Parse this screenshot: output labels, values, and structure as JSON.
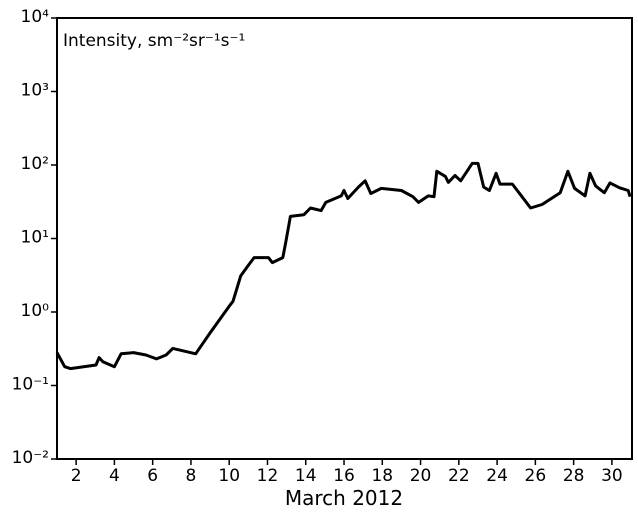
{
  "chart_data": {
    "type": "line",
    "title": "Intensity, sm⁻²sr⁻¹s⁻¹",
    "xlabel": "March 2012",
    "log_y": true,
    "color": "#000000",
    "xlim": [
      1,
      31.05
    ],
    "xticks": [
      2,
      4,
      6,
      8,
      10,
      12,
      14,
      16,
      18,
      20,
      22,
      24,
      26,
      28,
      30
    ],
    "ylim": [
      0.01,
      10000
    ],
    "yticks": [
      {
        "value": 0.01,
        "label": "10⁻²"
      },
      {
        "value": 0.1,
        "label": "10⁻¹"
      },
      {
        "value": 1,
        "label": "10⁰"
      },
      {
        "value": 10,
        "label": "10¹"
      },
      {
        "value": 100,
        "label": "10²"
      },
      {
        "value": 1000,
        "label": "10³"
      },
      {
        "value": 10000,
        "label": "10⁴"
      }
    ],
    "x": [
      1.0,
      1.4,
      1.7,
      3.04,
      3.2,
      3.4,
      4.0,
      4.35,
      5.0,
      5.65,
      6.2,
      6.7,
      7.05,
      8.25,
      9.0,
      10.0,
      10.2,
      10.6,
      11.0,
      11.3,
      12.05,
      12.25,
      12.8,
      12.95,
      13.2,
      13.9,
      14.25,
      14.8,
      15.05,
      15.85,
      16.0,
      16.2,
      16.75,
      17.1,
      17.4,
      17.95,
      19.0,
      19.6,
      19.9,
      20.4,
      20.7,
      20.85,
      21.3,
      21.45,
      21.8,
      22.1,
      22.7,
      23.0,
      23.3,
      23.6,
      23.95,
      24.15,
      24.8,
      25.2,
      25.75,
      26.35,
      27.3,
      27.7,
      28.05,
      28.6,
      28.85,
      29.15,
      29.6,
      29.9,
      30.4,
      30.85,
      30.95
    ],
    "values": [
      0.28,
      0.18,
      0.17,
      0.19,
      0.24,
      0.21,
      0.18,
      0.27,
      0.28,
      0.26,
      0.23,
      0.26,
      0.32,
      0.27,
      0.52,
      1.2,
      1.4,
      3.1,
      4.3,
      5.5,
      5.5,
      4.7,
      5.5,
      8.8,
      20,
      21,
      26,
      24,
      31,
      38,
      45,
      35,
      50,
      61,
      41,
      48,
      45,
      37,
      31,
      38,
      37,
      82,
      70,
      58,
      72,
      61,
      105,
      105,
      50,
      45,
      77,
      55,
      55,
      40,
      26,
      29,
      42,
      82,
      48,
      38,
      77,
      52,
      42,
      57,
      49,
      45,
      37
    ]
  }
}
